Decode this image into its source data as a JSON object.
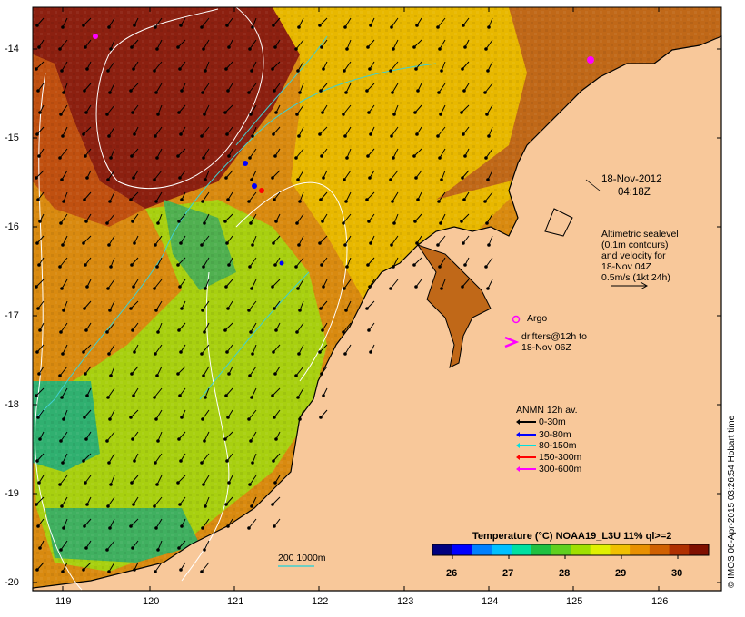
{
  "map": {
    "x_ticks": [
      "119",
      "120",
      "121",
      "122",
      "123",
      "124",
      "125",
      "126"
    ],
    "y_ticks": [
      "-14",
      "-15",
      "-16",
      "-17",
      "-18",
      "-19",
      "-20"
    ],
    "date_label": "18-Nov-2012",
    "time_label": "04:18Z",
    "altimetry_note": [
      "Altimetric sealevel",
      "(0.1m contours)",
      "and velocity for",
      "18-Nov 04Z",
      "0.5m/s (1kt 24h)"
    ],
    "argo_label": "Argo",
    "drifters_label": [
      "drifters@12h to",
      "18-Nov 06Z"
    ],
    "bathymetry_label": "200  1000m",
    "credit": "© IMOS 06-Apr-2015 03:26:54 Hobart time"
  },
  "legend": {
    "title": "ANMN 12h av.",
    "items": [
      {
        "label": "0-30m",
        "color": "#000000"
      },
      {
        "label": "30-80m",
        "color": "#0000ff"
      },
      {
        "label": "80-150m",
        "color": "#00e0e0"
      },
      {
        "label": "150-300m",
        "color": "#ff0000"
      },
      {
        "label": "300-600m",
        "color": "#ff00ff"
      }
    ]
  },
  "colorbar": {
    "title": "Temperature (°C) NOAA19_L3U 11% ql>=2",
    "ticks": [
      "26",
      "27",
      "28",
      "29",
      "30"
    ],
    "colors": [
      "#00007f",
      "#0000ff",
      "#0080ff",
      "#00c0ff",
      "#00e0a0",
      "#20c040",
      "#60d020",
      "#a0e000",
      "#e0f000",
      "#f0c000",
      "#e89000",
      "#d06000",
      "#b03000",
      "#801000"
    ]
  },
  "colors": {
    "land": "#f8c89a",
    "ocean_cool": "#40c060",
    "ocean_warm": "#d06010",
    "ocean_hot": "#8c2010",
    "ocean_mid": "#e0a000",
    "contour": "#ffffff",
    "isobath": "#40d0d0"
  }
}
